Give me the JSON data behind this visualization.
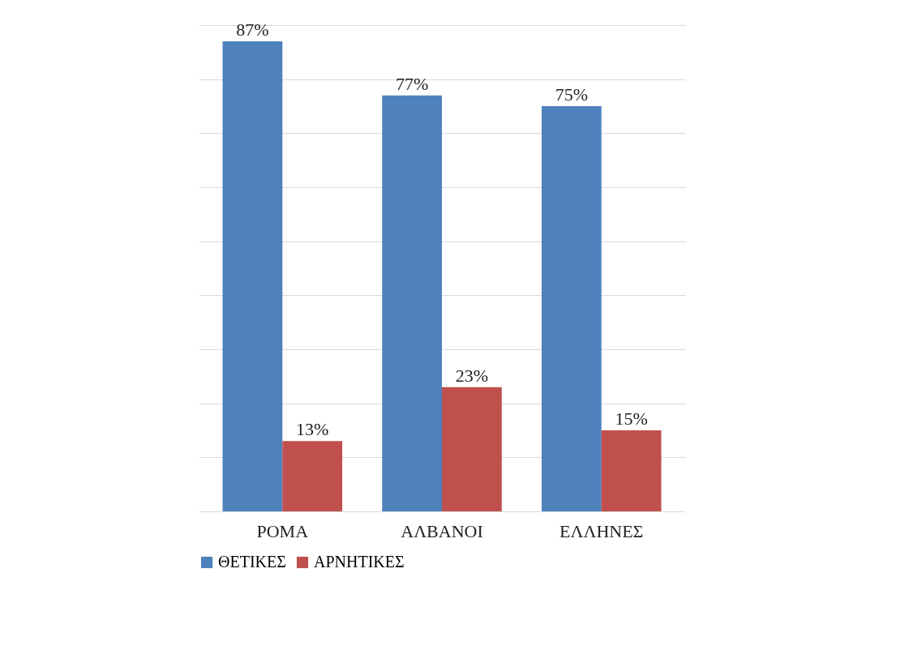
{
  "chart_data": {
    "type": "bar",
    "categories": [
      "ΡΟΜΑ",
      "ΑΛΒΑΝΟΙ",
      "ΕΛΛΗΝΕΣ"
    ],
    "series": [
      {
        "name": "ΘΕΤΙΚΕΣ",
        "color": "#4f81bd",
        "values": [
          87,
          77,
          75
        ],
        "value_labels": [
          "87%",
          "77%",
          "75%"
        ]
      },
      {
        "name": "ΑΡΝΗΤΙΚΕΣ",
        "color": "#c0504d",
        "values": [
          13,
          23,
          15
        ],
        "value_labels": [
          "13%",
          "23%",
          "15%"
        ]
      }
    ],
    "tick_labels": "x",
    "grid": "y",
    "legend": "bottom"
  }
}
